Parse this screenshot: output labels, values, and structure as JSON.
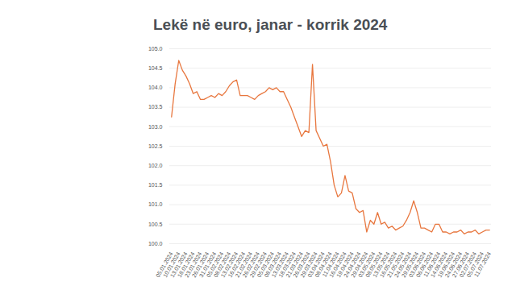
{
  "chart_data": {
    "type": "line",
    "title": "Lekë në euro, janar - korrik 2024",
    "categories": [
      "05.01.2024",
      null,
      "10.01.2024",
      null,
      "13.01.2024",
      null,
      "18.01.2024",
      null,
      "23.01.2024",
      null,
      "26.01.2024",
      null,
      "31.01.2024",
      null,
      "05.02.2024",
      null,
      "08.02.2024",
      null,
      "13.02.2024",
      null,
      "16.02.2024",
      null,
      "21.02.2024",
      null,
      "26.02.2024",
      null,
      "29.02.2024",
      null,
      "05.03.2024",
      null,
      "08.03.2024",
      null,
      "13.03.2024",
      null,
      "18.03.2024",
      null,
      "21.03.2024",
      null,
      "26.03.2024",
      null,
      "29.03.2024",
      null,
      "03.04.2024",
      null,
      "08.04.2024",
      null,
      "11.04.2024",
      null,
      "16.04.2024",
      null,
      "19.04.2024",
      null,
      "24.04.2024",
      null,
      "29.04.2024",
      null,
      "03.05.2024",
      null,
      "08.05.2024",
      null,
      "13.05.2024",
      null,
      "16.05.2024",
      null,
      "21.05.2024",
      null,
      "24.05.2024",
      null,
      "29.05.2024",
      null,
      "03.06.2024",
      null,
      "06.06.2024",
      null,
      "11.06.2024",
      null,
      "14.06.2024",
      null,
      "19.06.2024",
      null,
      "24.06.2024",
      null,
      "27.06.2024",
      null,
      "02.07.2024",
      null,
      "05.07.2024",
      null,
      "11.07.2024"
    ],
    "values": [
      103.25,
      104.1,
      104.7,
      104.45,
      104.3,
      104.1,
      103.85,
      103.9,
      103.7,
      103.7,
      103.75,
      103.8,
      103.75,
      103.85,
      103.8,
      103.9,
      104.05,
      104.15,
      104.2,
      103.8,
      103.8,
      103.8,
      103.75,
      103.7,
      103.8,
      103.85,
      103.9,
      104.0,
      103.95,
      104.0,
      103.9,
      103.9,
      103.7,
      103.5,
      103.25,
      103.0,
      102.75,
      102.9,
      102.85,
      104.6,
      102.9,
      102.7,
      102.5,
      102.55,
      102.1,
      101.5,
      101.2,
      101.3,
      101.75,
      101.35,
      101.3,
      100.9,
      100.8,
      100.85,
      100.3,
      100.6,
      100.5,
      100.8,
      100.5,
      100.55,
      100.4,
      100.45,
      100.35,
      100.4,
      100.45,
      100.6,
      100.8,
      101.1,
      100.8,
      100.4,
      100.4,
      100.35,
      100.3,
      100.5,
      100.5,
      100.3,
      100.3,
      100.25,
      100.3,
      100.3,
      100.35,
      100.25,
      100.3,
      100.3,
      100.35,
      100.25,
      100.3,
      100.35,
      100.35
    ],
    "color": "#e8773f",
    "ylim": [
      100,
      105
    ],
    "yticks": [
      {
        "value": 100,
        "label": "100.0"
      },
      {
        "value": 100.5,
        "label": "100.5"
      },
      {
        "value": 101,
        "label": "101.0"
      },
      {
        "value": 101.5,
        "label": "101.5"
      },
      {
        "value": 102,
        "label": "102.0"
      },
      {
        "value": 102.5,
        "label": "102.5"
      },
      {
        "value": 103,
        "label": "103.0"
      },
      {
        "value": 103.5,
        "label": "103.5"
      },
      {
        "value": 104,
        "label": "104.0"
      },
      {
        "value": 104.5,
        "label": "104.5"
      },
      {
        "value": 105,
        "label": "105.0"
      }
    ],
    "grid": true
  }
}
